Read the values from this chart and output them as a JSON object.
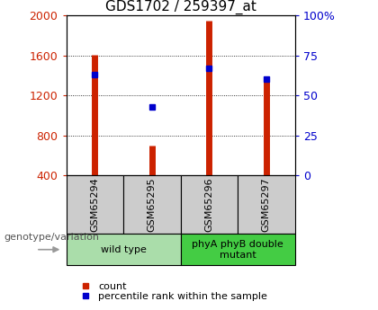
{
  "title": "GDS1702 / 259397_at",
  "samples": [
    "GSM65294",
    "GSM65295",
    "GSM65296",
    "GSM65297"
  ],
  "counts": [
    1608,
    700,
    1950,
    1380
  ],
  "percentiles": [
    63,
    43,
    67,
    60
  ],
  "ylim_left": [
    400,
    2000
  ],
  "ylim_right": [
    0,
    100
  ],
  "yticks_left": [
    400,
    800,
    1200,
    1600,
    2000
  ],
  "yticks_right": [
    0,
    25,
    50,
    75,
    100
  ],
  "yticklabels_right": [
    "0",
    "25",
    "50",
    "75",
    "100%"
  ],
  "bar_color": "#cc2200",
  "dot_color": "#0000cc",
  "groups": [
    {
      "label": "wild type",
      "samples": [
        0,
        1
      ],
      "color": "#aaddaa"
    },
    {
      "label": "phyA phyB double\nmutant",
      "samples": [
        2,
        3
      ],
      "color": "#44cc44"
    }
  ],
  "genotype_label": "genotype/variation",
  "legend_count_label": "count",
  "legend_pct_label": "percentile rank within the sample",
  "title_fontsize": 11,
  "tick_fontsize": 9,
  "axis_left_color": "#cc2200",
  "axis_right_color": "#0000cc",
  "sample_box_color": "#cccccc",
  "arrow_color": "#aaaaaa"
}
